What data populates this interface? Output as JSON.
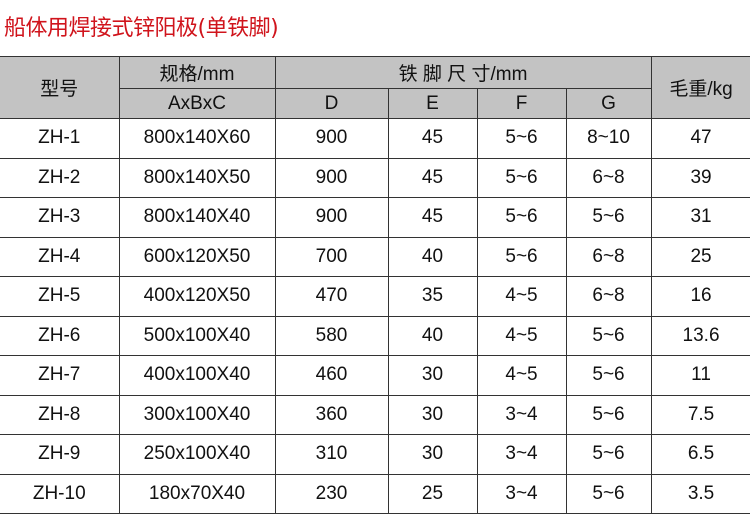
{
  "title": "船体用焊接式锌阳极(单铁脚)",
  "colors": {
    "title": "#d0141c",
    "header_bg": "#c3c3c3"
  },
  "headers": {
    "model": "型号",
    "spec": "规格/mm",
    "spec_sub": "AxBxC",
    "foot": "铁 脚 尺 寸/mm",
    "d": "D",
    "e": "E",
    "f": "F",
    "g": "G",
    "weight": "毛重/kg"
  },
  "rows": [
    [
      "ZH-1",
      "800x140X60",
      "900",
      "45",
      "5~6",
      "8~10",
      "47"
    ],
    [
      "ZH-2",
      "800x140X50",
      "900",
      "45",
      "5~6",
      "6~8",
      "39"
    ],
    [
      "ZH-3",
      "800x140X40",
      "900",
      "45",
      "5~6",
      "5~6",
      "31"
    ],
    [
      "ZH-4",
      "600x120X50",
      "700",
      "40",
      "5~6",
      "6~8",
      "25"
    ],
    [
      "ZH-5",
      "400x120X50",
      "470",
      "35",
      "4~5",
      "6~8",
      "16"
    ],
    [
      "ZH-6",
      "500x100X40",
      "580",
      "40",
      "4~5",
      "5~6",
      "13.6"
    ],
    [
      "ZH-7",
      "400x100X40",
      "460",
      "30",
      "4~5",
      "5~6",
      "11"
    ],
    [
      "ZH-8",
      "300x100X40",
      "360",
      "30",
      "3~4",
      "5~6",
      "7.5"
    ],
    [
      "ZH-9",
      "250x100X40",
      "310",
      "30",
      "3~4",
      "5~6",
      "6.5"
    ],
    [
      "ZH-10",
      "180x70X40",
      "230",
      "25",
      "3~4",
      "5~6",
      "3.5"
    ]
  ]
}
